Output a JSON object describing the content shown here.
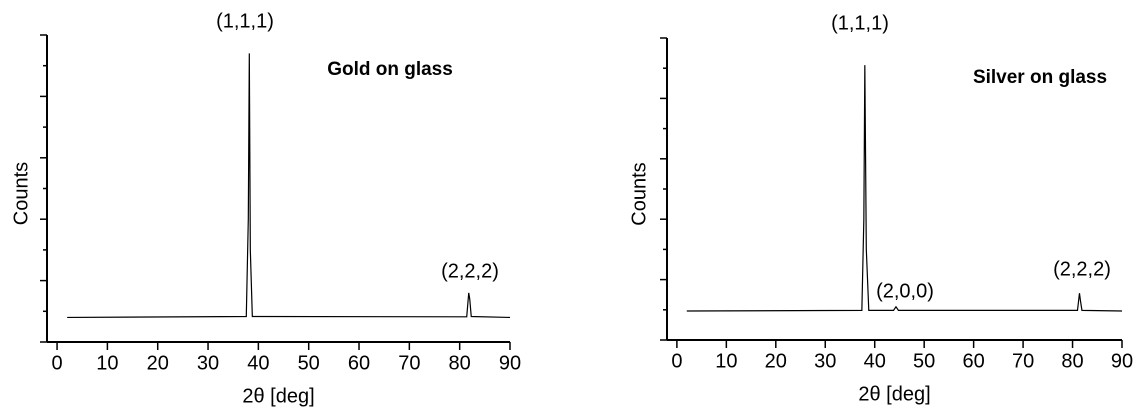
{
  "chart_data": [
    {
      "type": "line",
      "title": "Gold on glass",
      "x_label": "2θ [deg]",
      "y_label": "Counts",
      "xlim": [
        -2,
        90
      ],
      "xticks": [
        0,
        10,
        20,
        30,
        40,
        50,
        60,
        70,
        80,
        90
      ],
      "ylim": [
        0,
        100
      ],
      "yticks": [
        0,
        10,
        20,
        30,
        40,
        50,
        60,
        70,
        80,
        90,
        100
      ],
      "annotations": [
        "(1,1,1)",
        "(2,2,2)"
      ],
      "series": [
        {
          "color": "#000000",
          "x": [
            2,
            37.6,
            38.0,
            38.2,
            38.4,
            38.8,
            81.4,
            81.8,
            82.0,
            82.3,
            90
          ],
          "values": [
            8,
            8.3,
            40,
            94,
            30,
            8.3,
            8.2,
            16,
            14,
            8.3,
            8
          ]
        }
      ]
    },
    {
      "type": "line",
      "title": "Silver on glass",
      "x_label": "2θ [deg]",
      "y_label": "Counts",
      "xlim": [
        -2,
        90
      ],
      "xticks": [
        0,
        10,
        20,
        30,
        40,
        50,
        60,
        70,
        80,
        90
      ],
      "ylim": [
        0,
        100
      ],
      "yticks": [
        0,
        10,
        20,
        30,
        40,
        50,
        60,
        70,
        80,
        90,
        100
      ],
      "annotations": [
        "(1,1,1)",
        "(2,0,0)",
        "(2,2,2)"
      ],
      "series": [
        {
          "color": "#000000",
          "x": [
            2,
            37.4,
            37.8,
            38.0,
            38.3,
            38.8,
            43.8,
            44.3,
            44.8,
            81.0,
            81.4,
            81.6,
            81.9,
            90
          ],
          "values": [
            9.6,
            9.8,
            40,
            91,
            30,
            9.8,
            9.8,
            11,
            9.8,
            9.8,
            15.5,
            13,
            9.8,
            9.6
          ]
        }
      ]
    }
  ]
}
